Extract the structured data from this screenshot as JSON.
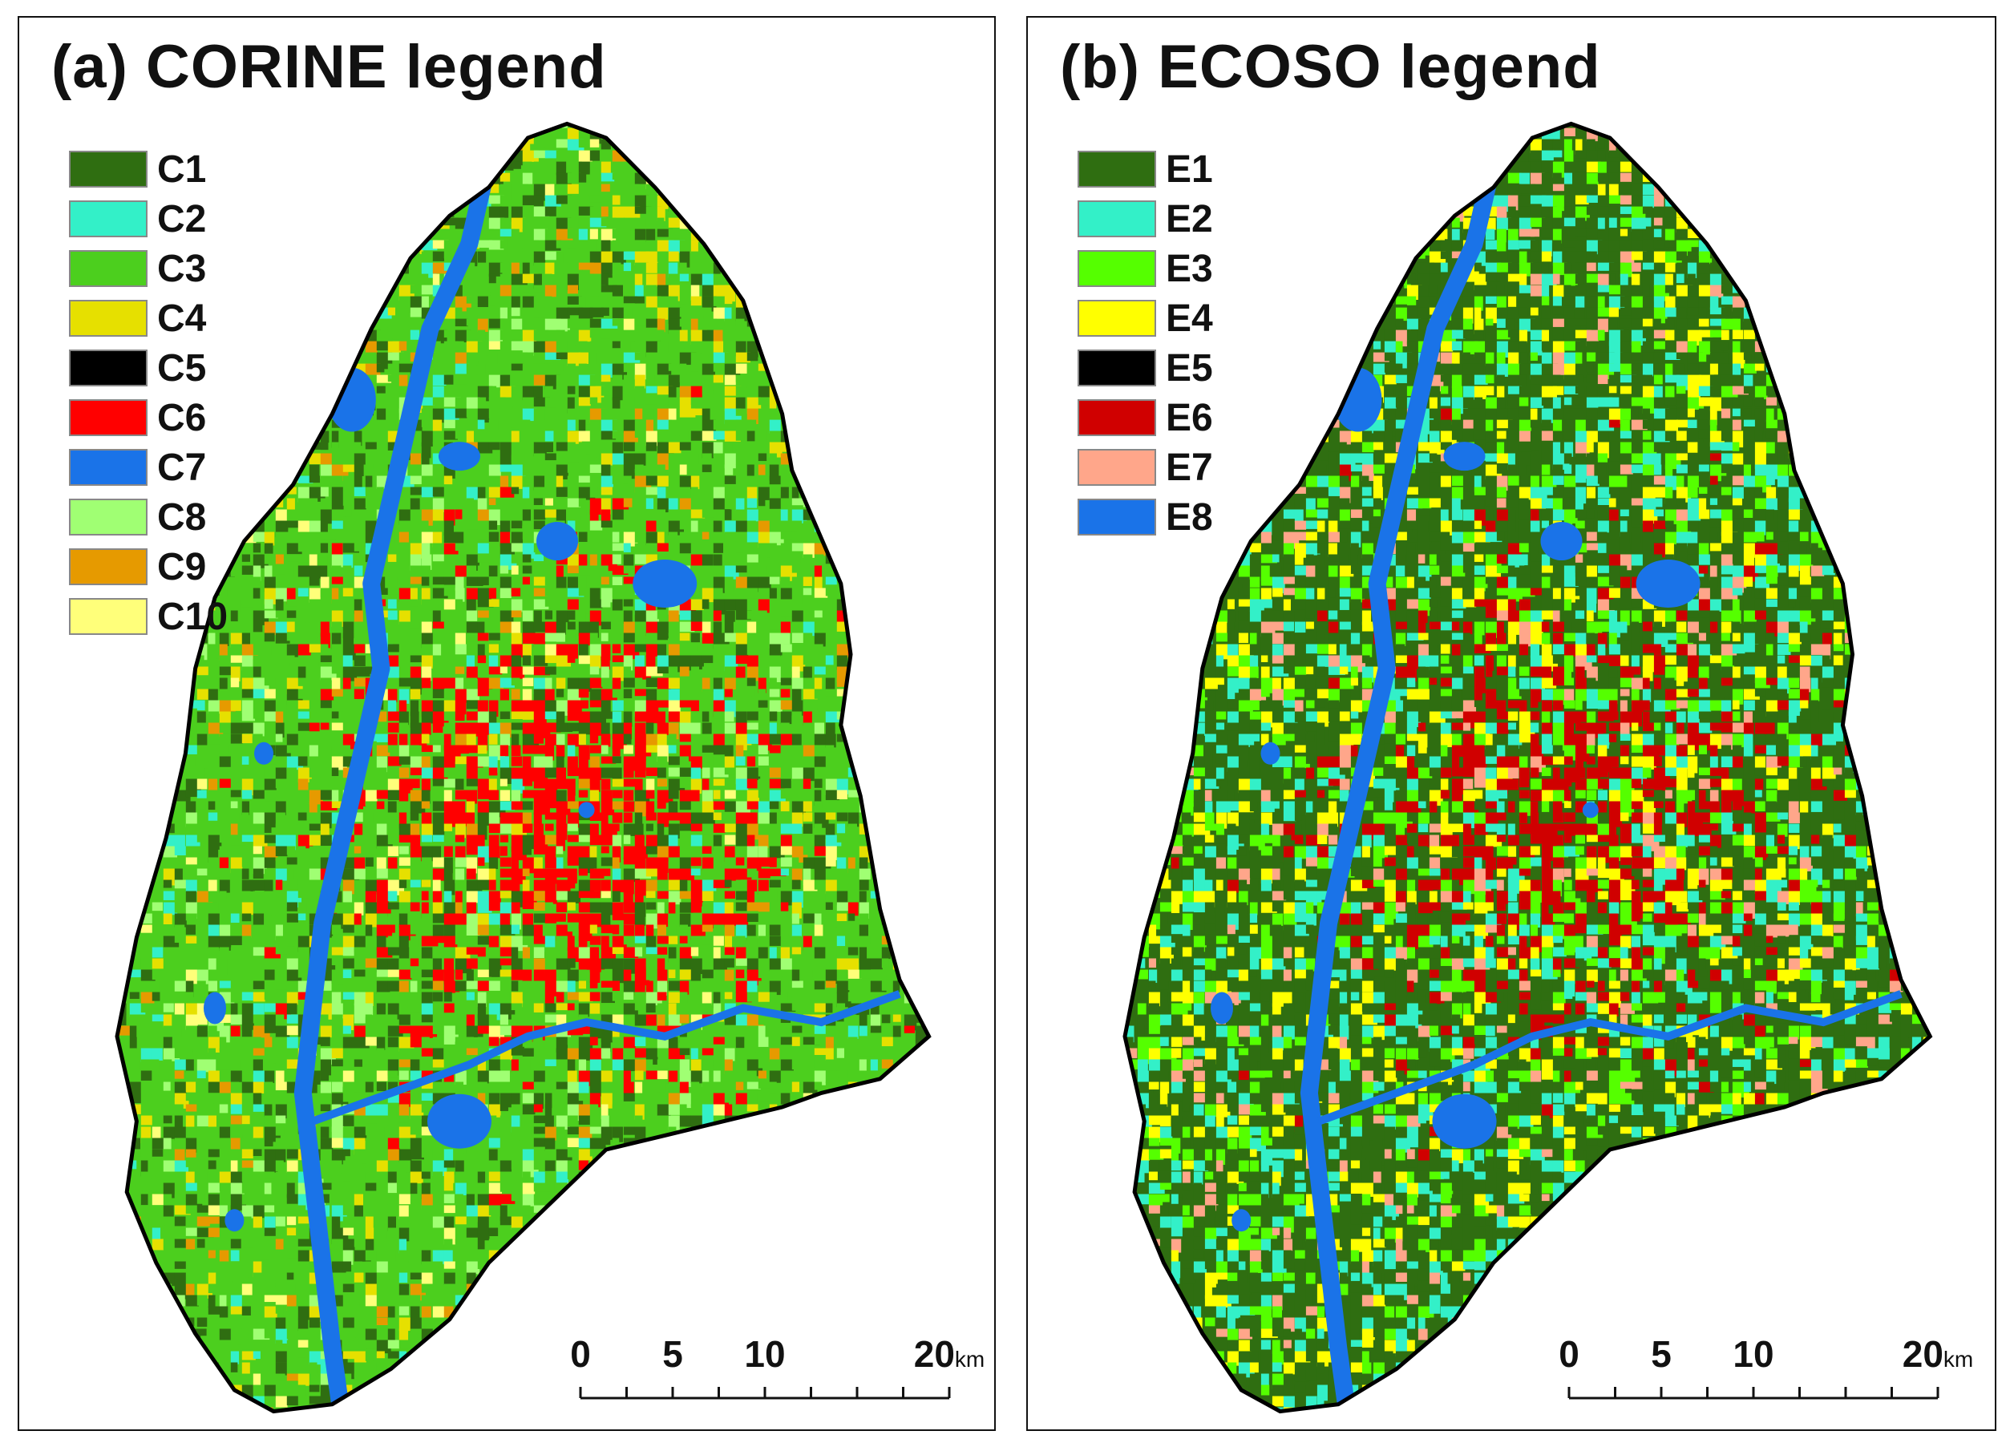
{
  "panels": [
    {
      "title": "(a) CORINE legend",
      "legend": [
        {
          "label": "C1",
          "color": "#2f6e11"
        },
        {
          "label": "C2",
          "color": "#33f0c8"
        },
        {
          "label": "C3",
          "color": "#4ccf1e"
        },
        {
          "label": "C4",
          "color": "#e6e000"
        },
        {
          "label": "C5",
          "color": "#000000"
        },
        {
          "label": "C6",
          "color": "#ff0000"
        },
        {
          "label": "C7",
          "color": "#1a73e8"
        },
        {
          "label": "C8",
          "color": "#a0ff73"
        },
        {
          "label": "C9",
          "color": "#e69a00"
        },
        {
          "label": "C10",
          "color": "#ffff7a"
        }
      ],
      "scale": {
        "ticks": [
          "0",
          "5",
          "10",
          "20"
        ],
        "unit": "km"
      }
    },
    {
      "title": "(b) ECOSO legend",
      "legend": [
        {
          "label": "E1",
          "color": "#2f6e11"
        },
        {
          "label": "E2",
          "color": "#33f0c8"
        },
        {
          "label": "E3",
          "color": "#55ff00"
        },
        {
          "label": "E4",
          "color": "#ffff00"
        },
        {
          "label": "E5",
          "color": "#000000"
        },
        {
          "label": "E6",
          "color": "#d00000"
        },
        {
          "label": "E7",
          "color": "#ffa68a"
        },
        {
          "label": "E8",
          "color": "#1a73e8"
        }
      ],
      "scale": {
        "ticks": [
          "0",
          "5",
          "10",
          "20"
        ],
        "unit": "km"
      }
    }
  ]
}
